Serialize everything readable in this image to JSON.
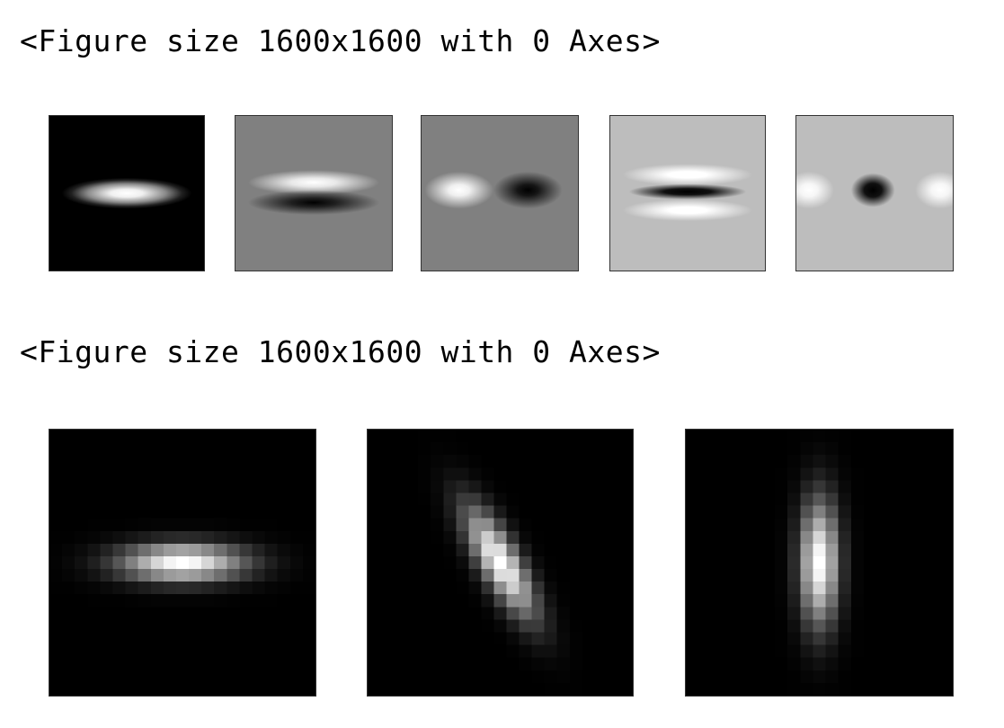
{
  "outputs": [
    {
      "text": "<Figure size 1600x1600 with 0 Axes>"
    },
    {
      "text": "<Figure size 1600x1600 with 0 Axes>"
    }
  ],
  "figure1": {
    "panels": [
      {
        "name": "gaussian-zero-order",
        "background": "#000000"
      },
      {
        "name": "gaussian-first-derivative-y",
        "background": "#808080"
      },
      {
        "name": "gaussian-first-derivative-x",
        "background": "#808080"
      },
      {
        "name": "gaussian-second-derivative-y",
        "background": "#bdbdbd"
      },
      {
        "name": "gaussian-second-derivative-x",
        "background": "#bdbdbd"
      }
    ]
  },
  "figure2": {
    "panels": [
      {
        "name": "anisotropic-gaussian-0deg",
        "angle_deg": 0
      },
      {
        "name": "anisotropic-gaussian-60deg",
        "angle_deg": 60
      },
      {
        "name": "anisotropic-gaussian-90deg",
        "angle_deg": 90
      }
    ]
  }
}
